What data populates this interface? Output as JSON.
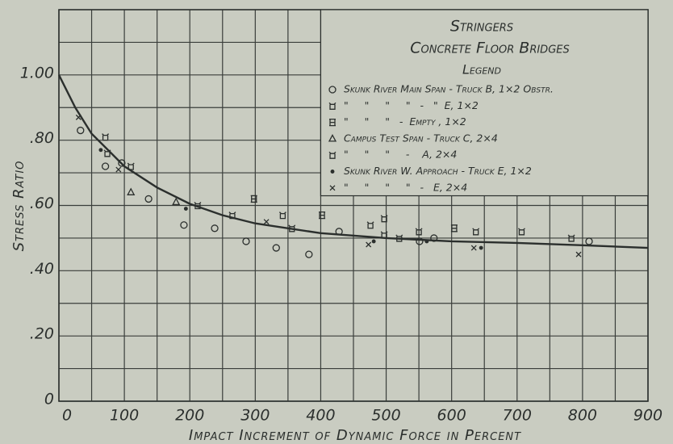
{
  "chart_data": {
    "type": "scatter",
    "title": "Stringers",
    "subtitle": "Concrete Floor Bridges",
    "legend_title": "Legend",
    "x_label": "Impact Increment of Dynamic Force in Percent",
    "y_label": "Stress Ratio",
    "xlim": [
      0,
      900
    ],
    "ylim": [
      0,
      1.2
    ],
    "xticks": [
      0,
      100,
      200,
      300,
      400,
      500,
      600,
      700,
      800,
      900
    ],
    "yticks": [
      0,
      {
        "value": 0.2,
        "label": ".20"
      },
      {
        "value": 0.4,
        "label": ".40"
      },
      {
        "value": 0.6,
        "label": ".60"
      },
      {
        "value": 0.8,
        "label": ".80"
      },
      {
        "value": 1.0,
        "label": "1.00"
      }
    ],
    "grid": true,
    "color": "#2b2f2d",
    "series": [
      {
        "name": "Skunk River Main Span - Truck B, 1×2 Obstr.",
        "marker": "circle",
        "x": [
          33,
          71,
          96,
          137,
          191,
          238,
          286,
          332,
          382,
          428,
          551,
          573,
          810
        ],
        "values": [
          0.83,
          0.72,
          0.73,
          0.62,
          0.54,
          0.53,
          0.49,
          0.47,
          0.45,
          0.52,
          0.49,
          0.5,
          0.49
        ]
      },
      {
        "name": "\"     \"     \"     \"   -   \"  E, 1×2",
        "marker": "square",
        "x": [
          71,
          74,
          110,
          212,
          265,
          342,
          356,
          476,
          497,
          550,
          637,
          707,
          783
        ],
        "values": [
          0.81,
          0.76,
          0.72,
          0.6,
          0.57,
          0.57,
          0.53,
          0.54,
          0.56,
          0.52,
          0.52,
          0.52,
          0.5
        ]
      },
      {
        "name": "\"     \"     \"   -  Empty , 1×2",
        "marker": "square-x",
        "x": [
          298,
          402,
          604
        ],
        "values": [
          0.62,
          0.57,
          0.53
        ]
      },
      {
        "name": "Campus Test Span - Truck C, 2×4",
        "marker": "triangle",
        "x": [
          110,
          179
        ],
        "values": [
          0.64,
          0.61
        ]
      },
      {
        "name": "\"     \"     \"     -    A, 2×4",
        "marker": "square",
        "x": [
          497,
          520
        ],
        "values": [
          0.51,
          0.5
        ]
      },
      {
        "name": "Skunk River W. Approach - Truck E, 1×2",
        "marker": "dot",
        "x": [
          64,
          194,
          481,
          562,
          645
        ],
        "values": [
          0.77,
          0.59,
          0.49,
          0.49,
          0.47
        ]
      },
      {
        "name": "\"     \"     \"     \"   -   E, 2×4",
        "marker": "x",
        "x": [
          30,
          91,
          317,
          473,
          634,
          794
        ],
        "values": [
          0.87,
          0.71,
          0.55,
          0.48,
          0.47,
          0.45
        ]
      }
    ],
    "fit_curve": {
      "x": [
        0,
        25,
        50,
        100,
        150,
        200,
        250,
        300,
        400,
        500,
        600,
        700,
        800,
        900
      ],
      "values": [
        1.0,
        0.9,
        0.82,
        0.72,
        0.655,
        0.605,
        0.57,
        0.545,
        0.515,
        0.5,
        0.49,
        0.485,
        0.478,
        0.47
      ]
    }
  }
}
